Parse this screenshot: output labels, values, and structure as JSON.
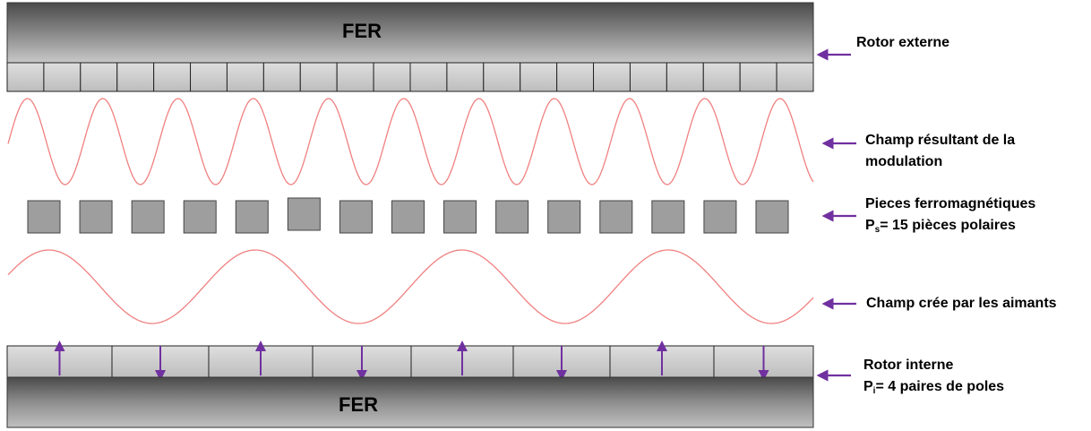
{
  "top_iron": {
    "label": "FER",
    "segment_count": 22
  },
  "bottom_iron": {
    "label": "FER"
  },
  "magnets": {
    "segment_count": 8,
    "arrow_directions": [
      "up",
      "down",
      "up",
      "down",
      "up",
      "down",
      "up",
      "down"
    ]
  },
  "modulated_field": {
    "periods": 11
  },
  "pole_pieces": {
    "count": 15
  },
  "magnet_field": {
    "periods": 4
  },
  "labels": {
    "rotor_externe": "Rotor externe",
    "champ_resultant_line1": "Champ résultant de la",
    "champ_resultant_line2": "modulation",
    "pieces_line1": "Pieces ferromagnétiques",
    "pieces_p": "P",
    "pieces_sub": "s",
    "pieces_rest": "= 15 pièces polaires",
    "champ_aimants": "Champ crée par les aimants",
    "rotor_interne": "Rotor interne",
    "pi_p": "P",
    "pi_sub": "i",
    "pi_rest": "= 4 paires de poles"
  },
  "colors": {
    "arrow": "#7030a0",
    "wave": "#f08080",
    "segment_fill": "#cccccc",
    "pole_fill": "#9e9e9e"
  }
}
